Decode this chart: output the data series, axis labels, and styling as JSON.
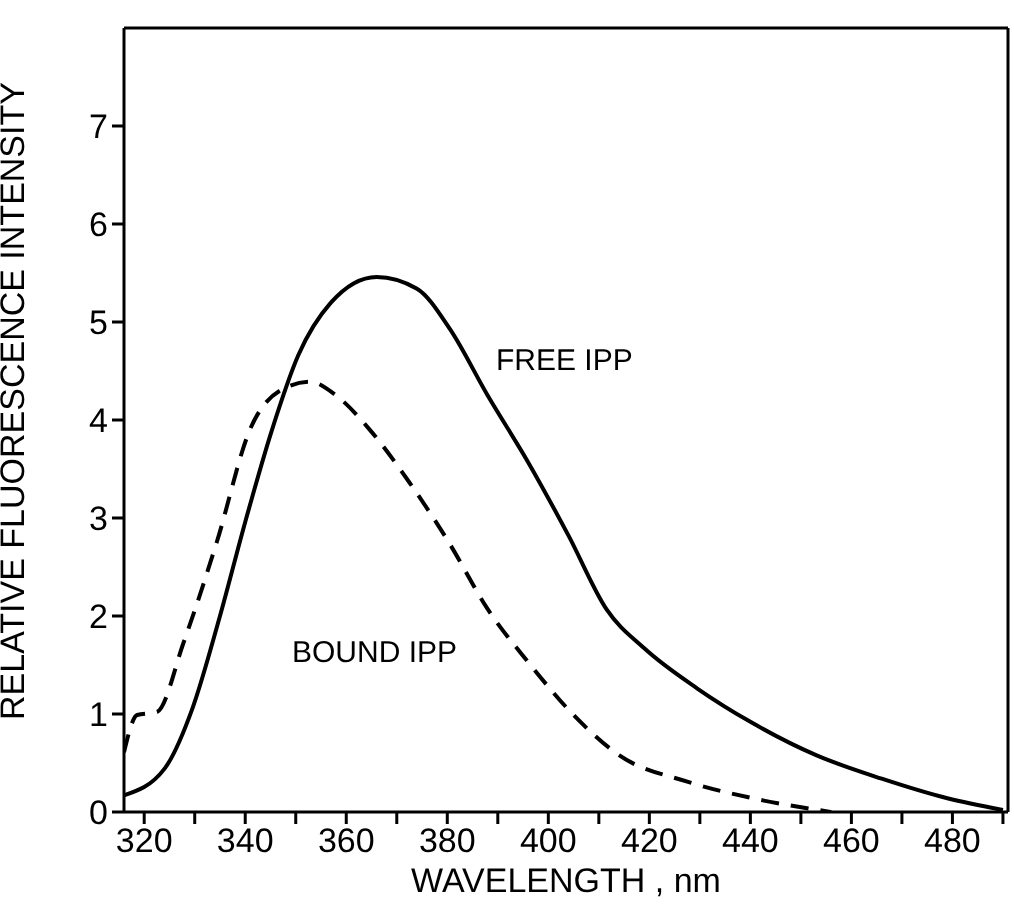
{
  "chart_data": {
    "type": "line",
    "xlabel": "WAVELENGTH , nm",
    "ylabel": "RELATIVE FLUORESCENCE INTENSITY",
    "xlim": [
      316,
      491
    ],
    "ylim": [
      0,
      8
    ],
    "xticks": [
      320,
      {
        "value": 330,
        "label": null
      },
      340,
      {
        "value": 350,
        "label": null
      },
      360,
      {
        "value": 370,
        "label": null
      },
      380,
      {
        "value": 390,
        "label": null
      },
      400,
      {
        "value": 410,
        "label": null
      },
      420,
      {
        "value": 430,
        "label": null
      },
      440,
      {
        "value": 450,
        "label": null
      },
      460,
      {
        "value": 470,
        "label": null
      },
      480,
      {
        "value": 490,
        "label": null
      }
    ],
    "yticks": [
      0,
      1,
      2,
      3,
      4,
      5,
      6,
      7
    ],
    "grid": false,
    "legend": false,
    "marker": "none",
    "series": [
      {
        "color": "#000000",
        "line_style": "solid",
        "x": [
          316,
          324,
          329.5,
          335,
          340,
          345.3,
          350.5,
          357,
          366,
          374,
          380.5,
          388,
          396,
          404,
          411.5,
          419,
          429.5,
          440,
          453,
          466,
          479,
          490
        ],
        "values": [
          0.17,
          0.44,
          1.05,
          2.0,
          2.96,
          3.9,
          4.66,
          5.2,
          5.46,
          5.34,
          4.93,
          4.25,
          3.57,
          2.82,
          2.07,
          1.67,
          1.26,
          0.92,
          0.58,
          0.34,
          0.14,
          0.02
        ]
      },
      {
        "color": "#000000",
        "line_style": "dashed",
        "x": [
          316,
          318.6,
          322.5,
          327.8,
          334.4,
          341,
          347.6,
          352.8,
          358,
          364.5,
          372.4,
          380.2,
          388,
          396,
          405,
          414,
          427.5,
          440.5,
          456
        ],
        "values": [
          0.61,
          0.99,
          1.02,
          1.73,
          2.76,
          3.91,
          4.32,
          4.39,
          4.25,
          3.91,
          3.37,
          2.76,
          2.07,
          1.53,
          0.99,
          0.58,
          0.31,
          0.14,
          0
        ]
      }
    ],
    "annotations": [
      "FREE IPP",
      "BOUND IPP"
    ]
  }
}
